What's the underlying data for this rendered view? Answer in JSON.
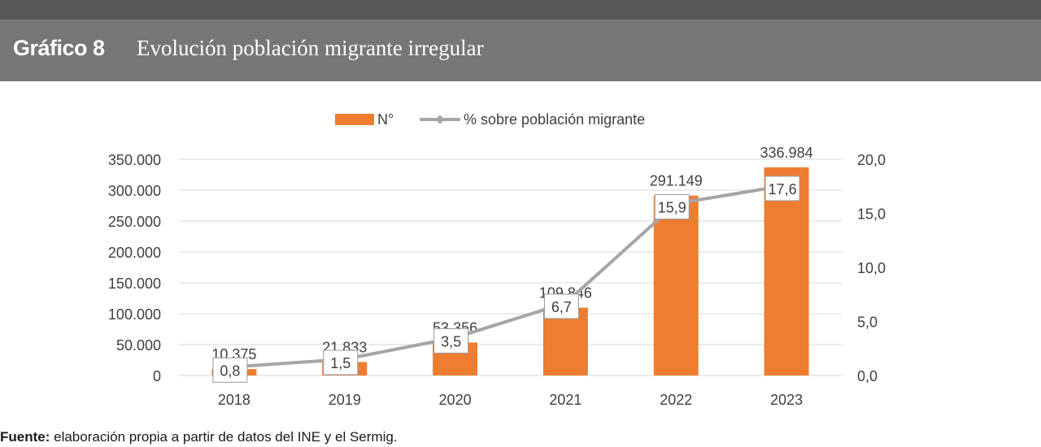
{
  "header": {
    "graph_number": "Gráfico 8",
    "graph_title": "Evolución población migrante irregular"
  },
  "footer": {
    "source_label": "Fuente:",
    "source_text": "elaboración propia a partir de datos del INE y el Sermig."
  },
  "colors": {
    "bar": "#ED7D31",
    "line": "#A5A5A5",
    "grid": "#D9D9D9",
    "header_bg": "#767676",
    "top_bar": "#575757"
  },
  "chart_data": {
    "type": "bar",
    "categories": [
      "2018",
      "2019",
      "2020",
      "2021",
      "2022",
      "2023"
    ],
    "series": [
      {
        "name": "N°",
        "type": "bar",
        "axis": "left",
        "values": [
          10375,
          21833,
          53356,
          109846,
          291149,
          336984
        ],
        "labels": [
          "10.375",
          "21.833",
          "53.356",
          "109.846",
          "291.149",
          "336.984"
        ]
      },
      {
        "name": "% sobre población migrante",
        "type": "line",
        "axis": "right",
        "values": [
          0.8,
          1.5,
          3.5,
          6.7,
          15.9,
          17.6
        ],
        "labels": [
          "0,8",
          "1,5",
          "3,5",
          "6,7",
          "15,9",
          "17,6"
        ]
      }
    ],
    "y_left": {
      "ylim": [
        0,
        350000
      ],
      "ticks": [
        0,
        50000,
        100000,
        150000,
        200000,
        250000,
        300000,
        350000
      ],
      "tick_labels": [
        "0",
        "50.000",
        "100.000",
        "150.000",
        "200.000",
        "250.000",
        "300.000",
        "350.000"
      ]
    },
    "y_right": {
      "ylim": [
        0,
        20
      ],
      "ticks": [
        0,
        5,
        10,
        15,
        20
      ],
      "tick_labels": [
        "0,0",
        "5,0",
        "10,0",
        "15,0",
        "20,0"
      ]
    },
    "grid": true,
    "legend_position": "top-center"
  }
}
